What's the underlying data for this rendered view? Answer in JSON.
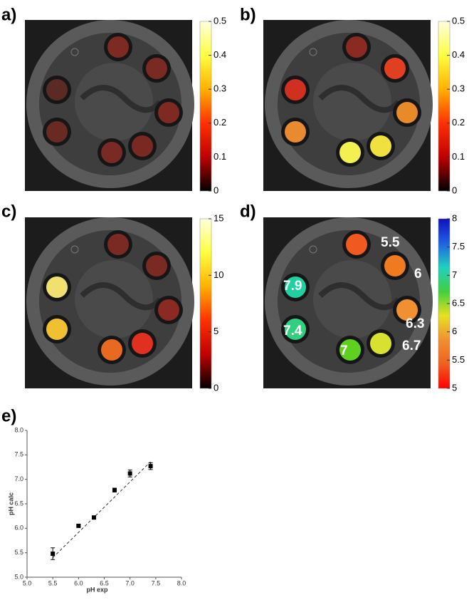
{
  "panels": [
    {
      "label": "a)",
      "colorbar": {
        "lim": [
          0,
          0.5
        ],
        "ticks": [
          0,
          0.1,
          0.2,
          0.3,
          0.4,
          0.5
        ],
        "colormap": [
          "#000000",
          "#c00000",
          "#ff3000",
          "#ffb000",
          "#ffff40",
          "#ffffe0"
        ]
      },
      "vial_colors": [
        "#7c2a22",
        "#7a2a22",
        "#7e2a22",
        "#7a2822",
        "#7a2a24",
        "#6a2a24",
        "#5a2a24"
      ]
    },
    {
      "label": "b)",
      "colorbar": {
        "lim": [
          0,
          0.5
        ],
        "ticks": [
          0,
          0.1,
          0.2,
          0.3,
          0.4,
          0.5
        ],
        "colormap": [
          "#000000",
          "#c00000",
          "#ff3000",
          "#ffb000",
          "#ffff40",
          "#ffffe0"
        ]
      },
      "vial_colors": [
        "#8a2a22",
        "#e04020",
        "#e88a2a",
        "#f0e040",
        "#f4f050",
        "#e88a30",
        "#d03020"
      ]
    },
    {
      "label": "c)",
      "colorbar": {
        "lim": [
          0,
          15
        ],
        "ticks": [
          0,
          5,
          10,
          15
        ],
        "colormap": [
          "#000000",
          "#c00000",
          "#ff3000",
          "#ffb000",
          "#ffff40",
          "#ffffe0"
        ]
      },
      "vial_colors": [
        "#7a2a22",
        "#7a2a22",
        "#8a2a22",
        "#e03020",
        "#e86a20",
        "#f0c030",
        "#f0e070"
      ]
    },
    {
      "label": "d)",
      "colorbar": {
        "lim": [
          5,
          8
        ],
        "ticks": [
          5,
          5.5,
          6,
          6.5,
          7,
          7.5,
          8
        ],
        "colormap": [
          "#ff0000",
          "#f06020",
          "#f09030",
          "#e8e020",
          "#40d040",
          "#20d0c0",
          "#2060e0",
          "#1010c0"
        ]
      },
      "vial_colors": [
        "#f05a20",
        "#f07a20",
        "#f09030",
        "#d8e030",
        "#60d020",
        "#30d080",
        "#20d0a0"
      ],
      "annotations": [
        "5.5",
        "6",
        "6.3",
        "6.7",
        "7",
        "7.4",
        "7.9"
      ]
    }
  ],
  "chart_data": {
    "type": "scatter",
    "label": "e)",
    "xlabel": "pH exp",
    "ylabel": "pH calc",
    "x": [
      5.5,
      6.0,
      6.3,
      6.7,
      7.0,
      7.4
    ],
    "y": [
      5.48,
      6.05,
      6.22,
      6.78,
      7.12,
      7.27
    ],
    "yerr": [
      0.12,
      0.02,
      0.03,
      0.04,
      0.07,
      0.07
    ],
    "color": "#000000",
    "fit": {
      "x": [
        5.5,
        7.4
      ],
      "y": [
        5.4,
        7.36
      ]
    },
    "xlim": [
      5,
      8
    ],
    "ylim": [
      5,
      8
    ],
    "xticks": [
      {
        "value": 5,
        "label": "5.0"
      },
      5.5,
      {
        "value": 6,
        "label": "6.0"
      },
      6.5,
      {
        "value": 7,
        "label": "7.0"
      },
      7.5,
      {
        "value": 8,
        "label": "8.0"
      }
    ],
    "yticks": [
      {
        "value": 5,
        "label": "5.0"
      },
      5.5,
      {
        "value": 6,
        "label": "6.0"
      },
      6.5,
      {
        "value": 7,
        "label": "7.0"
      },
      7.5,
      {
        "value": 8,
        "label": "8.0"
      }
    ]
  }
}
